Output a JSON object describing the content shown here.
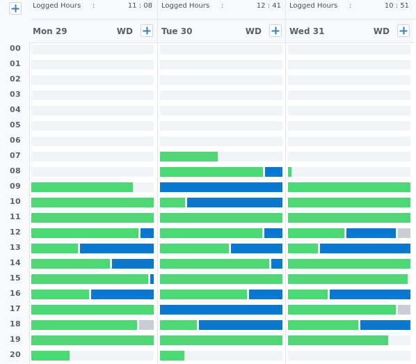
{
  "header": {
    "add_label": "+",
    "logged_label": "Logged Hours",
    "colon": ":"
  },
  "days": [
    {
      "name": "Mon 29",
      "wd": "WD",
      "logged": "11 : 08"
    },
    {
      "name": "Tue 30",
      "wd": "WD",
      "logged": "12 : 41"
    },
    {
      "name": "Wed 31",
      "wd": "WD",
      "logged": "10 : 51"
    }
  ],
  "hours": [
    "00",
    "01",
    "02",
    "03",
    "04",
    "05",
    "06",
    "07",
    "08",
    "09",
    "10",
    "11",
    "12",
    "13",
    "14",
    "15",
    "16",
    "17",
    "18",
    "19",
    "20"
  ],
  "colors": {
    "work": "#4cd975",
    "meeting": "#0a78cc",
    "idle": "#c9ced4",
    "empty": "#f2f5f7"
  },
  "activity": [
    {
      "day": "Mon 29",
      "rows": {
        "09": [
          [
            "work",
            0.83
          ]
        ],
        "10": [
          [
            "work",
            1.0
          ]
        ],
        "11": [
          [
            "work",
            1.0
          ]
        ],
        "12": [
          [
            "work",
            0.89
          ],
          [
            "meeting",
            0.11
          ]
        ],
        "13": [
          [
            "work",
            0.4
          ],
          [
            "meeting",
            0.6
          ]
        ],
        "14": [
          [
            "work",
            0.66
          ],
          [
            "meeting",
            0.34
          ]
        ],
        "15": [
          [
            "work",
            0.97
          ],
          [
            "meeting",
            0.03
          ]
        ],
        "16": [
          [
            "work",
            0.49
          ],
          [
            "meeting",
            0.51
          ]
        ],
        "17": [
          [
            "work",
            1.0
          ]
        ],
        "18": [
          [
            "work",
            0.88
          ],
          [
            "idle",
            0.12
          ]
        ],
        "19": [
          [
            "work",
            1.0
          ]
        ],
        "20": [
          [
            "work",
            0.31
          ]
        ]
      }
    },
    {
      "day": "Tue 30",
      "rows": {
        "07": [
          [
            "work",
            0.47
          ]
        ],
        "08": [
          [
            "work",
            0.86
          ],
          [
            "meeting",
            0.14
          ]
        ],
        "09": [
          [
            "meeting",
            1.0
          ]
        ],
        "10": [
          [
            "work",
            0.22
          ],
          [
            "meeting",
            0.78
          ]
        ],
        "11": [
          [
            "work",
            1.0
          ]
        ],
        "12": [
          [
            "work",
            0.85
          ],
          [
            "meeting",
            0.15
          ]
        ],
        "13": [
          [
            "work",
            0.58
          ],
          [
            "meeting",
            0.42
          ]
        ],
        "14": [
          [
            "work",
            0.91
          ],
          [
            "meeting",
            0.09
          ]
        ],
        "15": [
          [
            "work",
            1.0
          ]
        ],
        "16": [
          [
            "work",
            0.73
          ],
          [
            "meeting",
            0.27
          ]
        ],
        "17": [
          [
            "meeting",
            1.0
          ]
        ],
        "18": [
          [
            "work",
            0.32
          ],
          [
            "meeting",
            0.68
          ]
        ],
        "19": [
          [
            "work",
            1.0
          ]
        ],
        "20": [
          [
            "work",
            0.2
          ]
        ]
      }
    },
    {
      "day": "Wed 31",
      "rows": {
        "08": [
          [
            "work",
            0.03
          ]
        ],
        "09": [
          [
            "work",
            1.0
          ]
        ],
        "10": [
          [
            "work",
            1.0
          ]
        ],
        "11": [
          [
            "work",
            1.0
          ]
        ],
        "12": [
          [
            "work",
            0.48
          ],
          [
            "meeting",
            0.42
          ],
          [
            "idle",
            0.1
          ]
        ],
        "13": [
          [
            "work",
            0.26
          ],
          [
            "meeting",
            0.74
          ]
        ],
        "14": [
          [
            "work",
            1.0
          ]
        ],
        "15": [
          [
            "work",
            0.98
          ]
        ],
        "16": [
          [
            "work",
            0.34
          ],
          [
            "meeting",
            0.66
          ]
        ],
        "17": [
          [
            "work",
            0.9
          ],
          [
            "idle",
            0.1
          ]
        ],
        "18": [
          [
            "work",
            0.59
          ],
          [
            "meeting",
            0.41
          ]
        ],
        "19": [
          [
            "work",
            0.82
          ]
        ]
      }
    }
  ]
}
